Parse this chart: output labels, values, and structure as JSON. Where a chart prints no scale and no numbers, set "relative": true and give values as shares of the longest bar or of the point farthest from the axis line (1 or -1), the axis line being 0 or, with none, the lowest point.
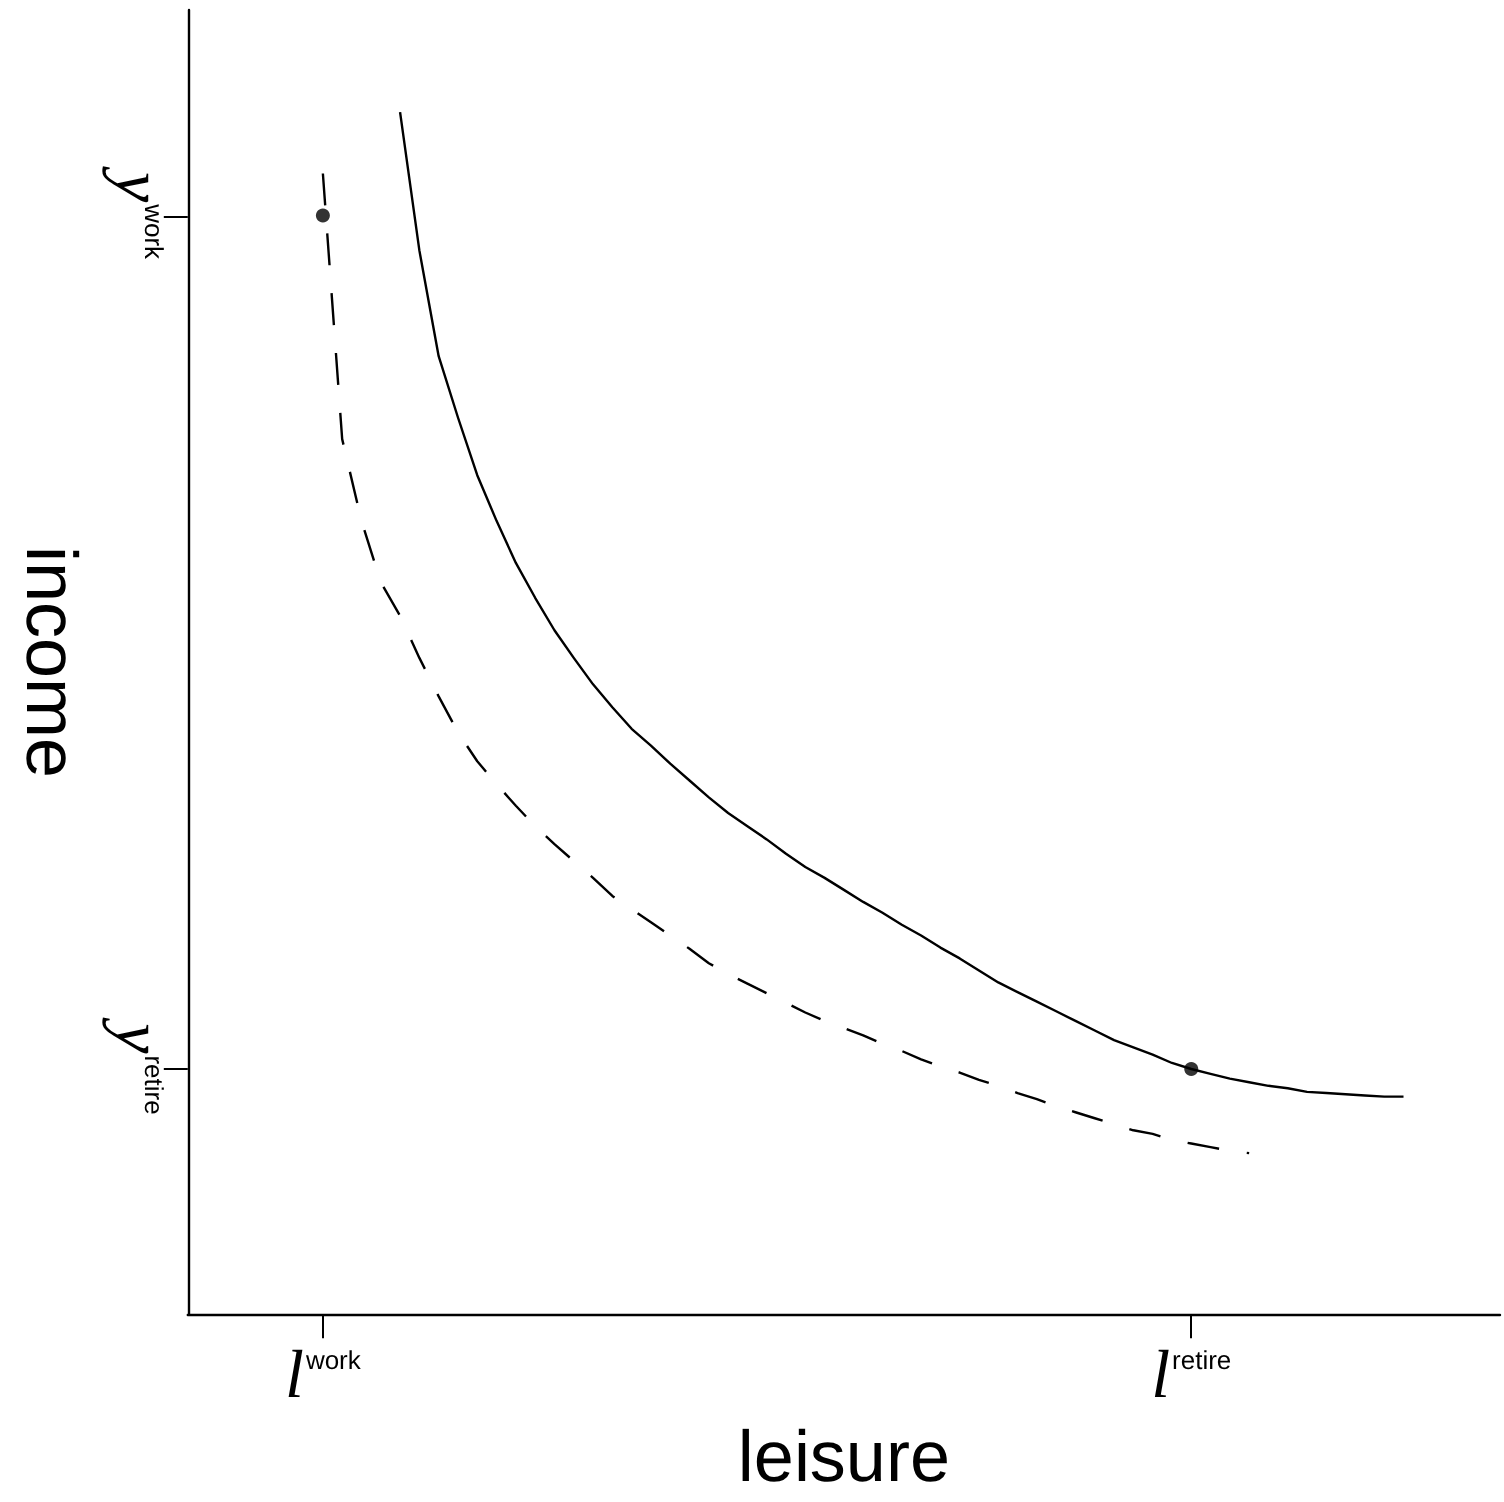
{
  "chart_data": {
    "type": "line",
    "xlabel": "leisure",
    "ylabel": "income",
    "relative": true,
    "categories": [
      null,
      null,
      null,
      null,
      null,
      null,
      null,
      "l$^{work}$",
      null,
      null,
      null,
      null,
      null,
      null,
      null,
      null,
      null,
      null,
      null,
      null,
      null,
      null,
      null,
      null,
      null,
      null,
      null,
      null,
      null,
      null,
      null,
      null,
      null,
      null,
      null,
      null,
      null,
      null,
      null,
      null,
      null,
      null,
      null,
      null,
      null,
      null,
      null,
      null,
      null,
      null,
      null,
      null,
      "l$^{retire}$",
      null,
      null,
      null,
      null,
      null,
      null,
      null,
      null,
      null,
      null,
      null,
      null,
      null,
      null,
      null,
      null
    ],
    "annotations": [
      "y$^{work}$",
      "y$^{retire}$"
    ],
    "series": [
      {
        "color": "#000000",
        "line_style": "solid",
        "marker": "none",
        "values": [
          null,
          null,
          null,
          null,
          null,
          null,
          null,
          null,
          null,
          null,
          null,
          1,
          0.885,
          0.797,
          0.746,
          0.698,
          0.66,
          0.625,
          0.596,
          0.569,
          0.546,
          0.524,
          0.505,
          0.487,
          0.473,
          0.458,
          0.444,
          0.43,
          0.417,
          0.406,
          0.395,
          0.383,
          0.372,
          0.363,
          0.353,
          0.343,
          0.334,
          0.324,
          0.315,
          0.305,
          0.296,
          0.286,
          0.276,
          0.268,
          0.26,
          0.252,
          0.244,
          0.236,
          0.228,
          0.222,
          0.216,
          0.209,
          0.204,
          0.2,
          0.196,
          0.193,
          0.19,
          0.188,
          0.185,
          0.184,
          0.183,
          0.182,
          0.181,
          0.181,
          null,
          null,
          null,
          null,
          null
        ]
      },
      {
        "color": "#000000",
        "line_style": "dashed",
        "marker": "none",
        "values": [
          null,
          null,
          null,
          null,
          null,
          null,
          null,
          0.949,
          0.728,
          0.66,
          0.609,
          0.581,
          0.546,
          0.514,
          0.484,
          0.46,
          0.441,
          0.423,
          0.406,
          0.391,
          0.377,
          0.363,
          0.348,
          0.337,
          0.326,
          0.315,
          0.304,
          0.292,
          0.283,
          0.275,
          0.267,
          0.259,
          0.251,
          0.244,
          0.238,
          0.232,
          0.225,
          0.219,
          0.212,
          0.206,
          0.201,
          0.195,
          0.19,
          0.184,
          0.179,
          0.173,
          0.168,
          0.163,
          0.158,
          0.153,
          0.15,
          0.145,
          0.142,
          0.139,
          0.136,
          0.134,
          null,
          null,
          null,
          null,
          null,
          null,
          null,
          null,
          null,
          null,
          null,
          null,
          null
        ]
      },
      {
        "type": "scatter",
        "color": "#000000",
        "marker": "circle",
        "x": [
          "l$^{work}$",
          "l$^{retire}$"
        ],
        "values": [
          0.914,
          0.204
        ]
      }
    ]
  }
}
